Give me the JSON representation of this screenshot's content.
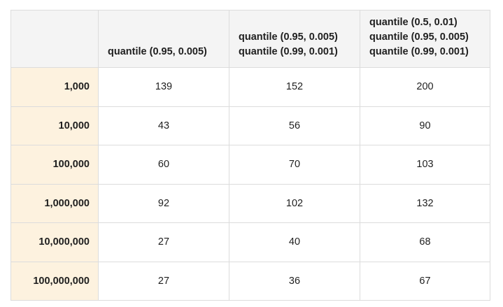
{
  "table": {
    "corner": "",
    "columns": [
      [
        "quantile (0.95, 0.005)"
      ],
      [
        "quantile (0.95, 0.005)",
        "quantile (0.99, 0.001)"
      ],
      [
        "quantile (0.5, 0.01)",
        "quantile (0.95, 0.005)",
        "quantile (0.99, 0.001)"
      ]
    ],
    "rows": [
      {
        "label": "1,000",
        "values": [
          "139",
          "152",
          "200"
        ]
      },
      {
        "label": "10,000",
        "values": [
          "43",
          "56",
          "90"
        ]
      },
      {
        "label": "100,000",
        "values": [
          "60",
          "70",
          "103"
        ]
      },
      {
        "label": "1,000,000",
        "values": [
          "92",
          "102",
          "132"
        ]
      },
      {
        "label": "10,000,000",
        "values": [
          "27",
          "40",
          "68"
        ]
      },
      {
        "label": "100,000,000",
        "values": [
          "27",
          "36",
          "67"
        ]
      }
    ]
  },
  "colors": {
    "header_background": "#f4f4f4",
    "row_header_background": "#fdf2df",
    "border": "#dcdcdc"
  }
}
